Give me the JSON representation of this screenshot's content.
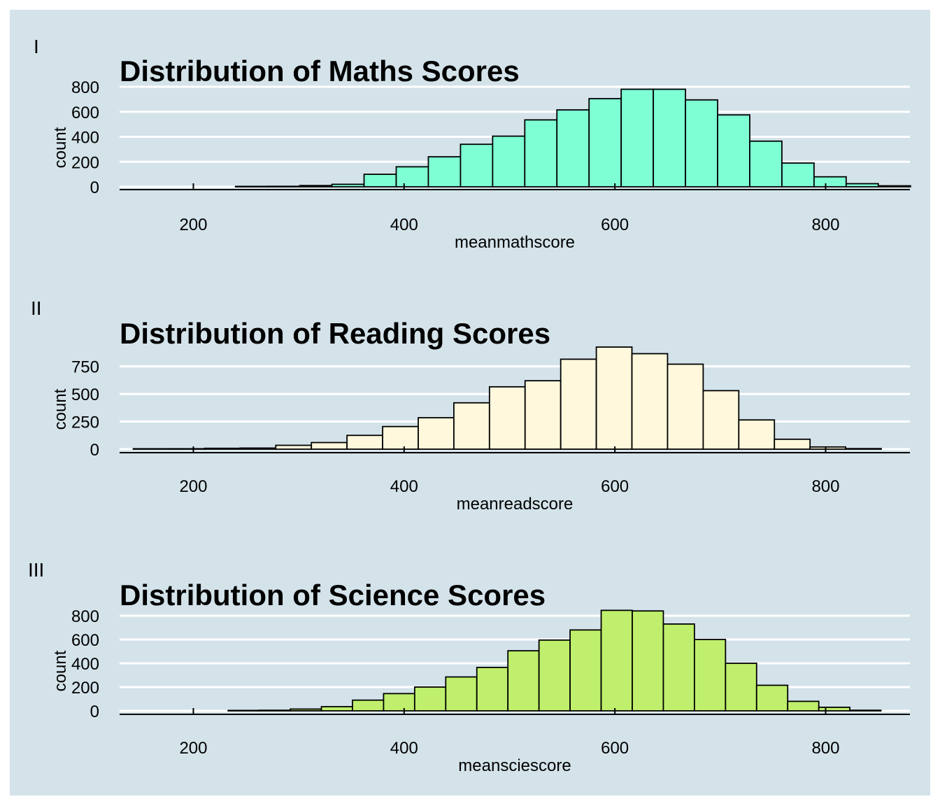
{
  "figure_background": "#d4e3ea",
  "chart_data": [
    {
      "type": "bar",
      "panel": "I",
      "title": "Distribution of Maths Scores",
      "xlabel": "meanmathscore",
      "ylabel": "count",
      "fill": "#7fffd4",
      "xlim": [
        130,
        880
      ],
      "ylim": [
        0,
        800
      ],
      "x_ticks": [
        200,
        400,
        600,
        800
      ],
      "y_ticks": [
        0,
        200,
        400,
        600,
        800
      ],
      "bin_start": 240,
      "bin_width": 30.5,
      "values": [
        2,
        4,
        10,
        20,
        100,
        160,
        240,
        340,
        405,
        535,
        615,
        705,
        780,
        780,
        695,
        575,
        365,
        190,
        80,
        25,
        8
      ]
    },
    {
      "type": "bar",
      "panel": "II",
      "title": "Distribution of Reading Scores",
      "xlabel": "meanreadscore",
      "ylabel": "count",
      "fill": "#fff8dc",
      "xlim": [
        130,
        880
      ],
      "ylim": [
        0,
        900
      ],
      "x_ticks": [
        200,
        400,
        600,
        800
      ],
      "y_ticks": [
        0,
        250,
        500,
        750
      ],
      "y_tick_labels": [
        "0",
        "250",
        "500",
        "750"
      ],
      "bin_start": 143,
      "bin_width": 33.8,
      "values": [
        2,
        4,
        8,
        10,
        35,
        60,
        125,
        205,
        285,
        420,
        565,
        620,
        815,
        925,
        865,
        770,
        530,
        265,
        90,
        20,
        5
      ]
    },
    {
      "type": "bar",
      "panel": "III",
      "title": "Distribution of Science Scores",
      "xlabel": "meansciescore",
      "ylabel": "count",
      "fill": "#bfef6c",
      "xlim": [
        130,
        880
      ],
      "ylim": [
        0,
        800
      ],
      "x_ticks": [
        200,
        400,
        600,
        800
      ],
      "y_ticks": [
        0,
        200,
        400,
        600,
        800
      ],
      "bin_start": 233,
      "bin_width": 29.5,
      "values": [
        2,
        5,
        15,
        35,
        90,
        145,
        200,
        285,
        365,
        505,
        595,
        680,
        845,
        840,
        730,
        600,
        400,
        215,
        80,
        30,
        5
      ]
    }
  ]
}
